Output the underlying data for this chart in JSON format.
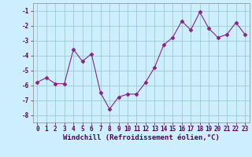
{
  "x": [
    0,
    1,
    2,
    3,
    4,
    5,
    6,
    7,
    8,
    9,
    10,
    11,
    12,
    13,
    14,
    15,
    16,
    17,
    18,
    19,
    20,
    21,
    22,
    23
  ],
  "y": [
    -5.8,
    -5.5,
    -5.9,
    -5.9,
    -3.6,
    -4.4,
    -3.9,
    -6.5,
    -7.6,
    -6.8,
    -6.6,
    -6.6,
    -5.8,
    -4.8,
    -3.3,
    -2.8,
    -1.7,
    -2.3,
    -1.1,
    -2.2,
    -2.8,
    -2.6,
    -1.8,
    -2.6
  ],
  "line_color": "#882288",
  "marker": "D",
  "marker_size": 2.5,
  "bg_color": "#cceeff",
  "grid_color": "#99cccc",
  "xlabel": "Windchill (Refroidissement éolien,°C)",
  "ylim": [
    -8.5,
    -0.5
  ],
  "xlim": [
    -0.5,
    23.5
  ],
  "yticks": [
    -8,
    -7,
    -6,
    -5,
    -4,
    -3,
    -2,
    -1
  ],
  "xticks": [
    0,
    1,
    2,
    3,
    4,
    5,
    6,
    7,
    8,
    9,
    10,
    11,
    12,
    13,
    14,
    15,
    16,
    17,
    18,
    19,
    20,
    21,
    22,
    23
  ],
  "tick_label_size": 5.5,
  "xlabel_size": 6.5
}
